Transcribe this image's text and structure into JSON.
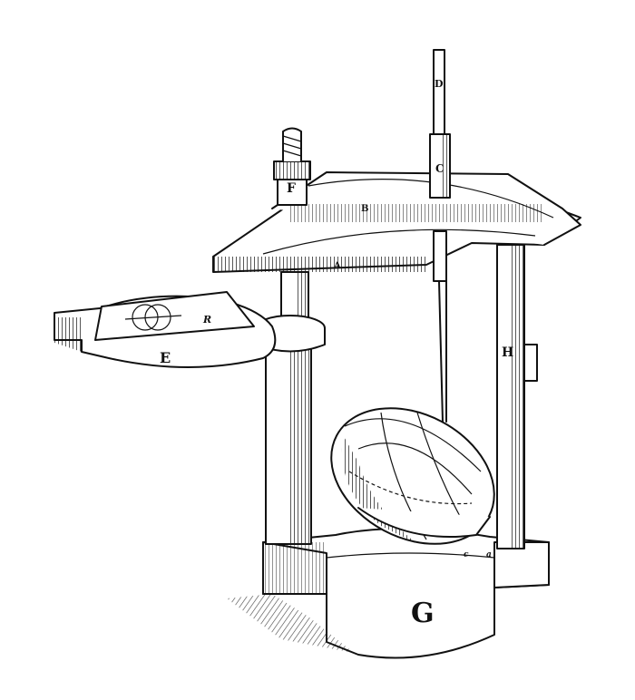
{
  "illustration": {
    "labels": {
      "g": "G",
      "e": "E",
      "f": "F",
      "h": "H",
      "c": "C",
      "d": "D",
      "r": "R",
      "b": "B",
      "a": "A",
      "c_small": "c",
      "a_small": "a"
    }
  }
}
